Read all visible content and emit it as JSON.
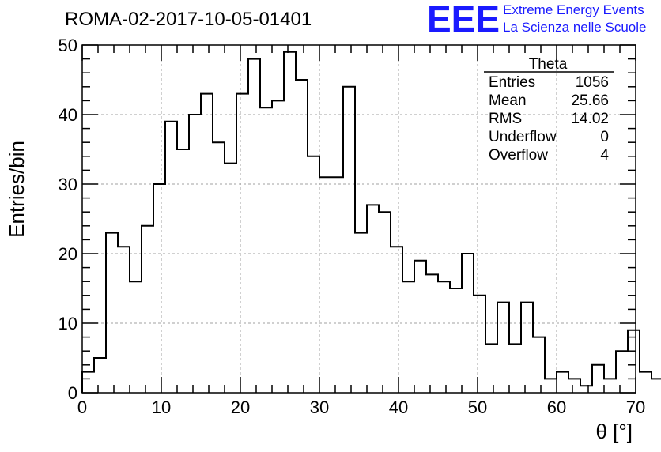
{
  "header": {
    "run_title": "ROMA-02-2017-10-05-01401",
    "logo_mark": "EEE",
    "logo_line1": "Extreme Energy Events",
    "logo_line2": "La Scienza nelle Scuole",
    "logo_color": "#1a1aff"
  },
  "stats": {
    "name": "Theta",
    "rows": [
      {
        "label": "Entries",
        "value": "1056"
      },
      {
        "label": "Mean",
        "value": "25.66"
      },
      {
        "label": "RMS",
        "value": "14.02"
      },
      {
        "label": "Underflow",
        "value": "0"
      },
      {
        "label": "Overflow",
        "value": "4"
      }
    ]
  },
  "chart_data": {
    "type": "histogram",
    "title": "ROMA-02-2017-10-05-01401",
    "xlabel": "θ [°]",
    "ylabel": "Entries/bin",
    "xlim": [
      0,
      70
    ],
    "ylim": [
      0,
      50
    ],
    "x_ticks": [
      0,
      10,
      20,
      30,
      40,
      50,
      60,
      70
    ],
    "y_ticks": [
      0,
      10,
      20,
      30,
      40,
      50
    ],
    "grid": true,
    "bin_width": 1.5,
    "bin_edges_start": 0,
    "values": [
      3,
      5,
      23,
      21,
      16,
      24,
      30,
      39,
      35,
      40,
      43,
      36,
      33,
      43,
      48,
      41,
      42,
      49,
      45,
      34,
      31,
      31,
      44,
      23,
      27,
      26,
      21,
      16,
      19,
      17,
      16,
      15,
      20,
      14,
      7,
      13,
      7,
      13,
      8,
      2,
      3,
      2,
      1,
      4,
      2,
      6,
      9,
      3,
      2
    ],
    "line_color": "#000000"
  }
}
